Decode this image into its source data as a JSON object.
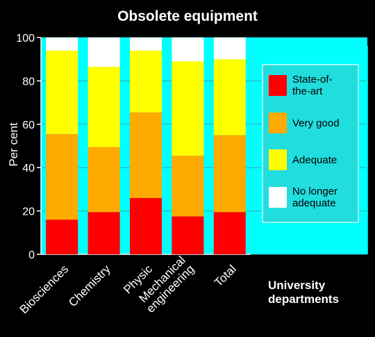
{
  "chart_data": {
    "type": "bar",
    "stacked": true,
    "title": "Obsolete equipment",
    "ylabel": "Per cent",
    "xlabel": "University departments",
    "ylim": [
      0,
      100
    ],
    "yticks": [
      0,
      20,
      40,
      60,
      80,
      100
    ],
    "grid": true,
    "legend_position": "right",
    "categories": [
      "Biosciences",
      "Chemistry",
      "Physic",
      "Mechanical engineering",
      "Total"
    ],
    "series": [
      {
        "name": "State-of-the-art",
        "color": "#ff0000",
        "values": [
          16,
          19.5,
          26,
          17.5,
          19.5
        ]
      },
      {
        "name": "Very good",
        "color": "#ffaa00",
        "values": [
          39.5,
          30,
          39.5,
          28,
          35.5
        ]
      },
      {
        "name": "Adequate",
        "color": "#ffff00",
        "values": [
          38.5,
          37,
          28.5,
          43.5,
          35
        ]
      },
      {
        "name": "No longer adequate",
        "color": "#ffffff",
        "values": [
          6,
          13.5,
          6,
          11,
          10
        ]
      }
    ],
    "colors": {
      "background": "#000000",
      "plot_area": "#00ffff",
      "shadow": "#00c8c8",
      "gridline": "#33aaaa",
      "legend_box": "#22dddd",
      "text": "#ffffff",
      "legend_text": "#000000"
    }
  }
}
